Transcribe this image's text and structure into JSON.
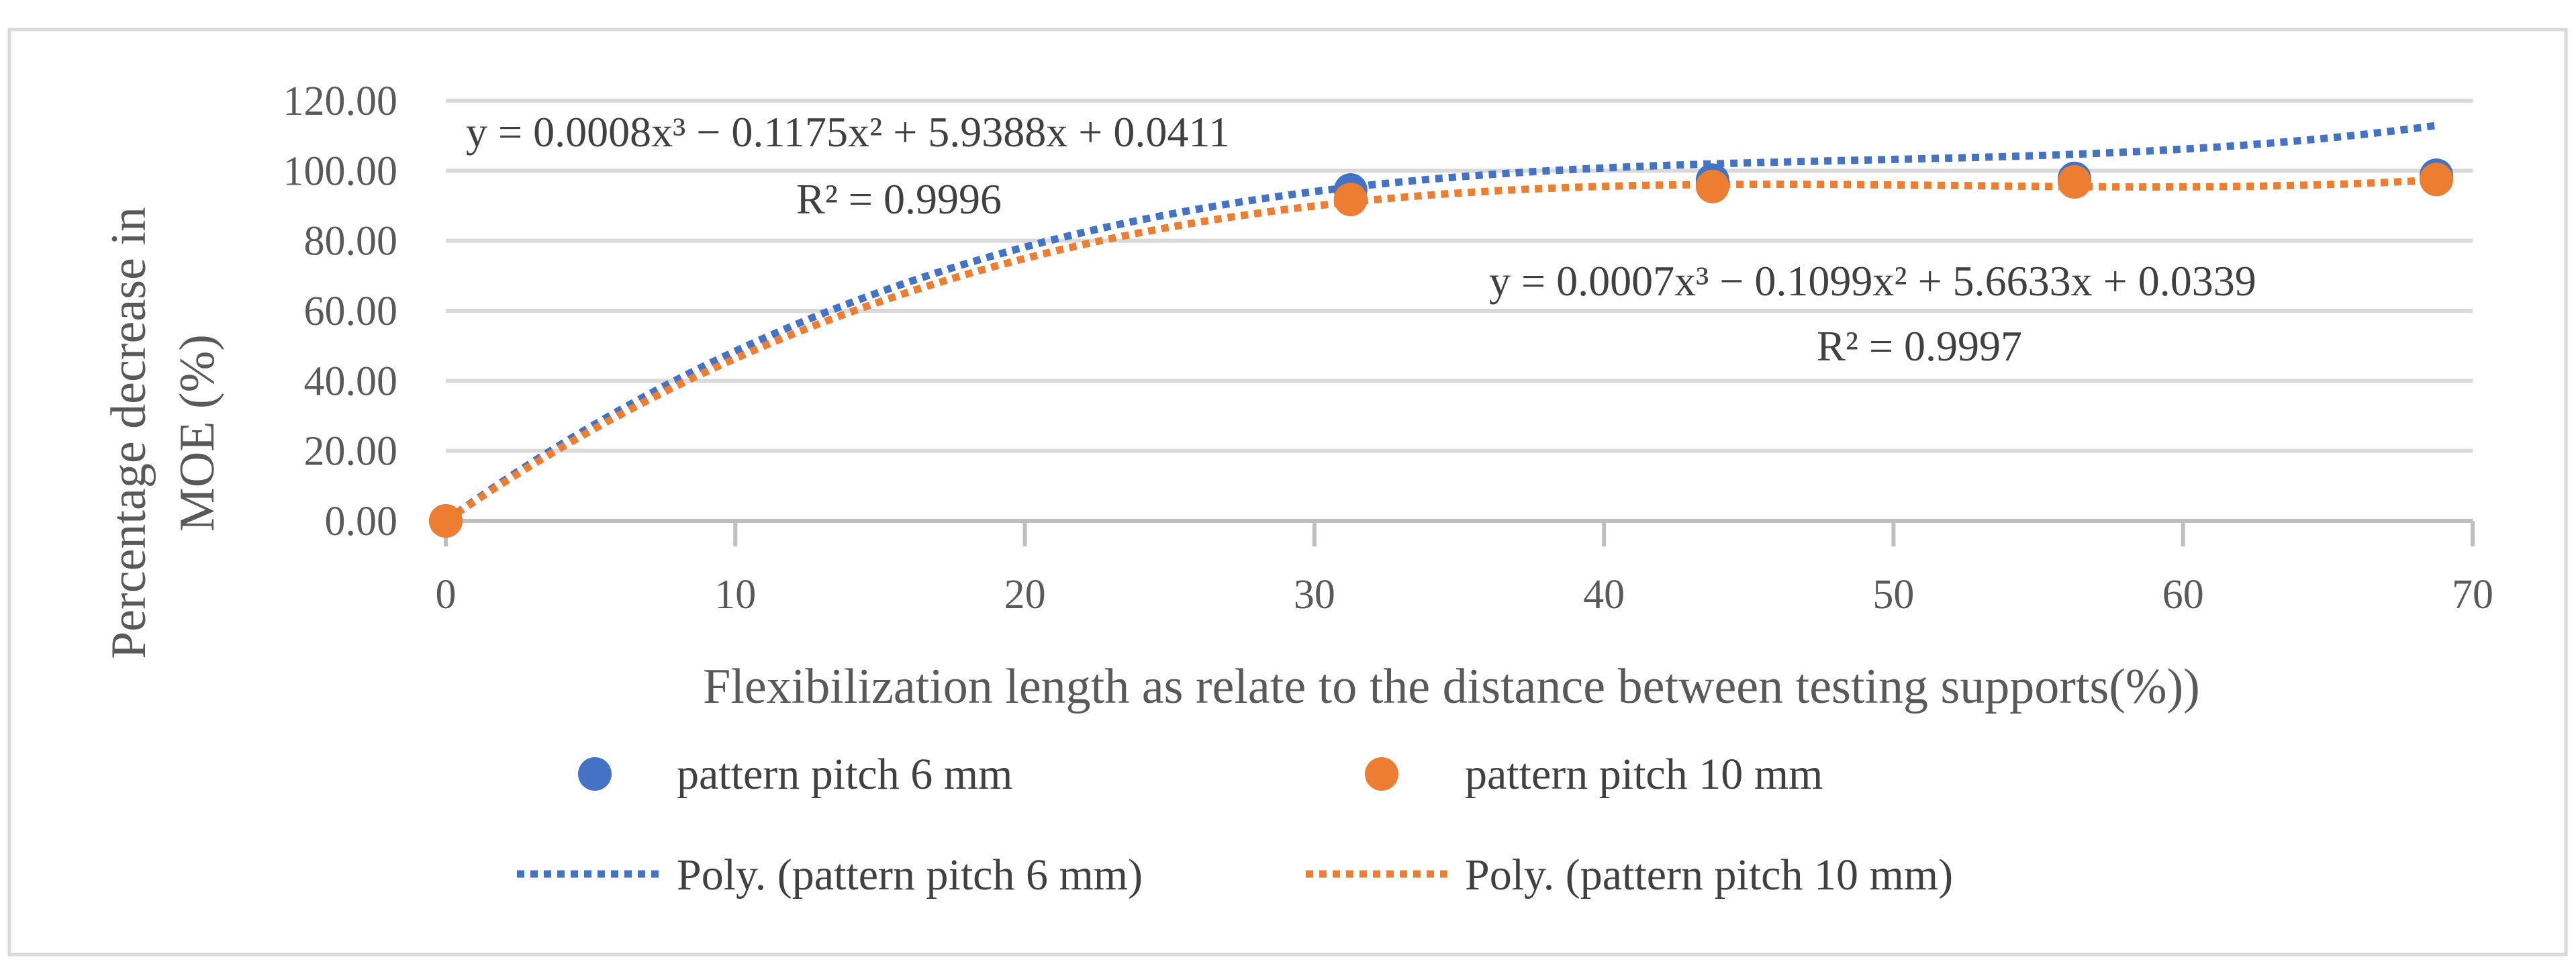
{
  "colors": {
    "series1": "#4472C4",
    "series2": "#ED7D31",
    "grid": "#D9D9D9",
    "text": "#595959"
  },
  "chart_data": {
    "type": "scatter",
    "xlabel": "Flexibilization length as relate to the distance between testing supports(%))",
    "ylabel_lines": [
      "Percentage decrease in",
      "MOE (%)"
    ],
    "xlim": [
      0,
      70
    ],
    "ylim": [
      0,
      120
    ],
    "x_ticks": [
      "0",
      "10",
      "20",
      "30",
      "40",
      "50",
      "60",
      "70"
    ],
    "y_ticks": [
      "0.00",
      "20.00",
      "40.00",
      "60.00",
      "80.00",
      "100.00",
      "120.00"
    ],
    "grid": "horizontal",
    "legend_position": "bottom",
    "series": [
      {
        "name": "pattern pitch 6 mm",
        "trend_name": "Poly. (pattern pitch 6 mm)",
        "color": "#4472C4",
        "x": [
          0,
          31.25,
          43.75,
          56.25,
          68.75
        ],
        "y": [
          0,
          94.5,
          97.3,
          97.8,
          98.7
        ],
        "trend": {
          "coefficients": [
            0.0411,
            5.9388,
            -0.1175,
            0.0008
          ],
          "equation": "y = 0.0008x³ − 0.1175x² + 5.9388x + 0.0411",
          "r2": "R² = 0.9996"
        }
      },
      {
        "name": "pattern pitch 10 mm",
        "trend_name": "Poly. (pattern pitch 10 mm)",
        "color": "#ED7D31",
        "x": [
          0,
          31.25,
          43.75,
          56.25,
          68.75
        ],
        "y": [
          0,
          91.8,
          95.5,
          96.8,
          97.5
        ],
        "trend": {
          "coefficients": [
            0.0339,
            5.6633,
            -0.1099,
            0.0007
          ],
          "equation": "y = 0.0007x³ − 0.1099x² + 5.6633x + 0.0339",
          "r2": "R² = 0.9997"
        }
      }
    ]
  }
}
